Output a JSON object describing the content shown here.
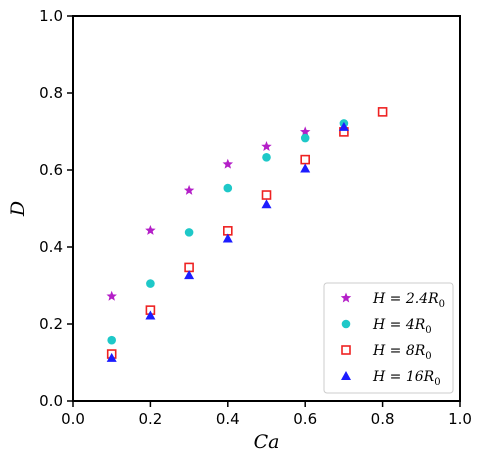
{
  "chart_data": {
    "type": "scatter",
    "xlabel": "Ca",
    "ylabel": "D",
    "xlim": [
      0.0,
      1.0
    ],
    "ylim": [
      0.0,
      1.0
    ],
    "xticks": [
      "0.0",
      "0.2",
      "0.4",
      "0.6",
      "0.8",
      "1.0"
    ],
    "yticks": [
      "0.0",
      "0.2",
      "0.4",
      "0.6",
      "0.8",
      "1.0"
    ],
    "grid": false,
    "legend_position": "lower-right",
    "series": [
      {
        "name": "H = 2.4R0",
        "legend_main": "H = 2.4R",
        "legend_sub": "0",
        "marker": "star",
        "color": "#b41fc8",
        "x": [
          0.1,
          0.2,
          0.3,
          0.4,
          0.5,
          0.6
        ],
        "y": [
          0.272,
          0.443,
          0.547,
          0.615,
          0.661,
          0.699
        ]
      },
      {
        "name": "H = 4R0",
        "legend_main": "H = 4R",
        "legend_sub": "0",
        "marker": "circle",
        "color": "#1ec8c8",
        "x": [
          0.1,
          0.2,
          0.3,
          0.4,
          0.5,
          0.6,
          0.7
        ],
        "y": [
          0.158,
          0.305,
          0.438,
          0.553,
          0.633,
          0.683,
          0.721
        ]
      },
      {
        "name": "H = 8R0",
        "legend_main": "H = 8R",
        "legend_sub": "0",
        "marker": "square-open",
        "color": "#ee2222",
        "x": [
          0.1,
          0.2,
          0.3,
          0.4,
          0.5,
          0.6,
          0.7,
          0.8
        ],
        "y": [
          0.122,
          0.236,
          0.347,
          0.442,
          0.535,
          0.627,
          0.699,
          0.751
        ]
      },
      {
        "name": "H = 16R0",
        "legend_main": "H = 16R",
        "legend_sub": "0",
        "marker": "triangle",
        "color": "#1c1cff",
        "x": [
          0.1,
          0.2,
          0.3,
          0.4,
          0.5,
          0.6,
          0.7
        ],
        "y": [
          0.112,
          0.222,
          0.327,
          0.422,
          0.511,
          0.604,
          0.712
        ]
      }
    ]
  }
}
